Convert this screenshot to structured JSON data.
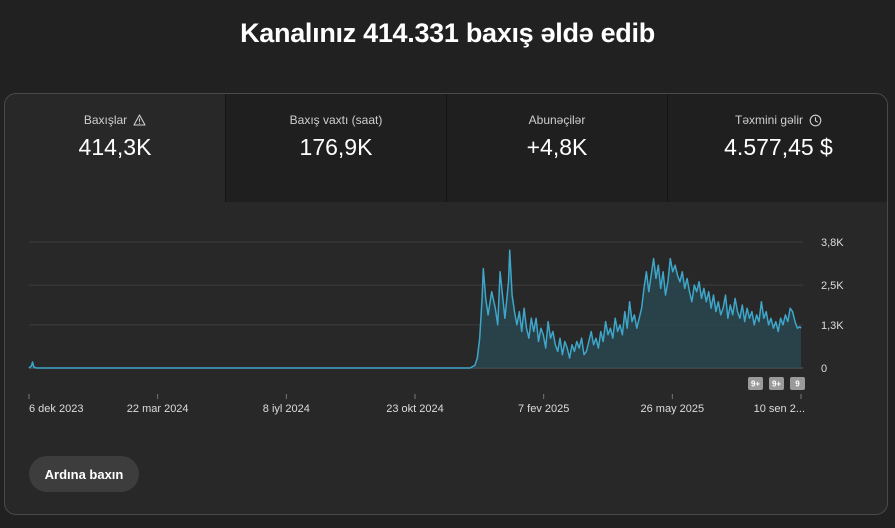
{
  "headline": "Kanalınız 414.331 baxış əldə edib",
  "metrics": [
    {
      "label": "Baxışlar",
      "value": "414,3K",
      "icon": "warning-icon"
    },
    {
      "label": "Baxış vaxtı (saat)",
      "value": "176,9K"
    },
    {
      "label": "Abunəçilər",
      "value": "+4,8K"
    },
    {
      "label": "Təxmini gəlir",
      "value": "4.577,45 $",
      "icon": "clock-icon"
    }
  ],
  "button_label": "Ardına baxın",
  "colors": {
    "line": "#3ea6c9",
    "area": "#2a4954",
    "grid": "#3d3d3d"
  },
  "chart_data": {
    "type": "area",
    "x_start": "2023-12-06",
    "x_end": "2025-09-10",
    "xticks": [
      "6 dek 2023",
      "22 mar 2024",
      "8 iyl 2024",
      "23 okt 2024",
      "7 fev 2025",
      "26 may 2025",
      "10 sen 2..."
    ],
    "yticks": [
      "0",
      "1,3K",
      "2,5K",
      "3,8K"
    ],
    "ylim": [
      0,
      3800
    ],
    "grid": true,
    "badges": [
      "9+",
      "9+",
      "9"
    ],
    "points": [
      [
        "2023-12-06",
        0
      ],
      [
        "2023-12-08",
        60
      ],
      [
        "2023-12-09",
        180
      ],
      [
        "2023-12-10",
        30
      ],
      [
        "2023-12-12",
        0
      ],
      [
        "2024-12-08",
        0
      ],
      [
        "2024-12-12",
        80
      ],
      [
        "2024-12-14",
        300
      ],
      [
        "2024-12-16",
        900
      ],
      [
        "2024-12-18",
        2100
      ],
      [
        "2024-12-19",
        3000
      ],
      [
        "2024-12-21",
        2100
      ],
      [
        "2024-12-23",
        1600
      ],
      [
        "2024-12-26",
        2300
      ],
      [
        "2024-12-29",
        1800
      ],
      [
        "2024-12-31",
        1300
      ],
      [
        "2025-01-02",
        2900
      ],
      [
        "2025-01-04",
        2200
      ],
      [
        "2025-01-06",
        1500
      ],
      [
        "2025-01-09",
        2600
      ],
      [
        "2025-01-10",
        3550
      ],
      [
        "2025-01-12",
        2200
      ],
      [
        "2025-01-14",
        1700
      ],
      [
        "2025-01-16",
        1300
      ],
      [
        "2025-01-18",
        1700
      ],
      [
        "2025-01-20",
        1100
      ],
      [
        "2025-01-22",
        1800
      ],
      [
        "2025-01-24",
        1200
      ],
      [
        "2025-01-26",
        900
      ],
      [
        "2025-01-28",
        1500
      ],
      [
        "2025-01-30",
        1100
      ],
      [
        "2025-02-01",
        1500
      ],
      [
        "2025-02-03",
        800
      ],
      [
        "2025-02-05",
        1200
      ],
      [
        "2025-02-07",
        1000
      ],
      [
        "2025-02-09",
        600
      ],
      [
        "2025-02-11",
        1400
      ],
      [
        "2025-02-13",
        900
      ],
      [
        "2025-02-15",
        1100
      ],
      [
        "2025-02-17",
        700
      ],
      [
        "2025-02-19",
        500
      ],
      [
        "2025-02-21",
        900
      ],
      [
        "2025-02-23",
        400
      ],
      [
        "2025-02-25",
        800
      ],
      [
        "2025-02-27",
        600
      ],
      [
        "2025-03-01",
        300
      ],
      [
        "2025-03-03",
        700
      ],
      [
        "2025-03-05",
        500
      ],
      [
        "2025-03-07",
        800
      ],
      [
        "2025-03-09",
        600
      ],
      [
        "2025-03-11",
        900
      ],
      [
        "2025-03-13",
        400
      ],
      [
        "2025-03-15",
        500
      ],
      [
        "2025-03-17",
        800
      ],
      [
        "2025-03-19",
        1100
      ],
      [
        "2025-03-21",
        700
      ],
      [
        "2025-03-23",
        900
      ],
      [
        "2025-03-25",
        600
      ],
      [
        "2025-03-27",
        1100
      ],
      [
        "2025-03-29",
        800
      ],
      [
        "2025-03-31",
        1400
      ],
      [
        "2025-04-02",
        1000
      ],
      [
        "2025-04-04",
        1200
      ],
      [
        "2025-04-06",
        900
      ],
      [
        "2025-04-08",
        1500
      ],
      [
        "2025-04-10",
        1100
      ],
      [
        "2025-04-12",
        1300
      ],
      [
        "2025-04-14",
        1000
      ],
      [
        "2025-04-16",
        1700
      ],
      [
        "2025-04-18",
        1200
      ],
      [
        "2025-04-20",
        2000
      ],
      [
        "2025-04-22",
        1400
      ],
      [
        "2025-04-24",
        1600
      ],
      [
        "2025-04-26",
        1200
      ],
      [
        "2025-04-28",
        1500
      ],
      [
        "2025-04-30",
        1800
      ],
      [
        "2025-05-02",
        2400
      ],
      [
        "2025-05-04",
        2900
      ],
      [
        "2025-05-06",
        2300
      ],
      [
        "2025-05-08",
        2800
      ],
      [
        "2025-05-10",
        3300
      ],
      [
        "2025-05-12",
        2700
      ],
      [
        "2025-05-14",
        3100
      ],
      [
        "2025-05-16",
        2400
      ],
      [
        "2025-05-18",
        2900
      ],
      [
        "2025-05-20",
        2200
      ],
      [
        "2025-05-22",
        2600
      ],
      [
        "2025-05-24",
        3300
      ],
      [
        "2025-05-26",
        2900
      ],
      [
        "2025-05-28",
        3100
      ],
      [
        "2025-05-30",
        2800
      ],
      [
        "2025-06-01",
        2600
      ],
      [
        "2025-06-03",
        2900
      ],
      [
        "2025-06-05",
        2400
      ],
      [
        "2025-06-07",
        2700
      ],
      [
        "2025-06-09",
        2300
      ],
      [
        "2025-06-11",
        2000
      ],
      [
        "2025-06-13",
        2500
      ],
      [
        "2025-06-15",
        2300
      ],
      [
        "2025-06-17",
        2600
      ],
      [
        "2025-06-19",
        2100
      ],
      [
        "2025-06-21",
        2400
      ],
      [
        "2025-06-23",
        2000
      ],
      [
        "2025-06-25",
        2300
      ],
      [
        "2025-06-27",
        1800
      ],
      [
        "2025-06-29",
        2200
      ],
      [
        "2025-07-01",
        1700
      ],
      [
        "2025-07-03",
        2000
      ],
      [
        "2025-07-05",
        1600
      ],
      [
        "2025-07-07",
        1800
      ],
      [
        "2025-07-09",
        2200
      ],
      [
        "2025-07-11",
        1500
      ],
      [
        "2025-07-13",
        1900
      ],
      [
        "2025-07-15",
        1600
      ],
      [
        "2025-07-17",
        2100
      ],
      [
        "2025-07-19",
        1700
      ],
      [
        "2025-07-21",
        1500
      ],
      [
        "2025-07-23",
        1900
      ],
      [
        "2025-07-25",
        1400
      ],
      [
        "2025-07-27",
        1800
      ],
      [
        "2025-07-29",
        1500
      ],
      [
        "2025-07-31",
        1700
      ],
      [
        "2025-08-02",
        1300
      ],
      [
        "2025-08-04",
        1600
      ],
      [
        "2025-08-06",
        1400
      ],
      [
        "2025-08-08",
        2000
      ],
      [
        "2025-08-10",
        1500
      ],
      [
        "2025-08-12",
        1700
      ],
      [
        "2025-08-14",
        1300
      ],
      [
        "2025-08-16",
        1500
      ],
      [
        "2025-08-18",
        1200
      ],
      [
        "2025-08-20",
        1400
      ],
      [
        "2025-08-22",
        1100
      ],
      [
        "2025-08-24",
        1500
      ],
      [
        "2025-08-26",
        1300
      ],
      [
        "2025-08-28",
        1600
      ],
      [
        "2025-08-30",
        1400
      ],
      [
        "2025-09-01",
        1800
      ],
      [
        "2025-09-03",
        1700
      ],
      [
        "2025-09-05",
        1400
      ],
      [
        "2025-09-07",
        1200
      ],
      [
        "2025-09-09",
        1250
      ],
      [
        "2025-09-10",
        1200
      ]
    ]
  }
}
